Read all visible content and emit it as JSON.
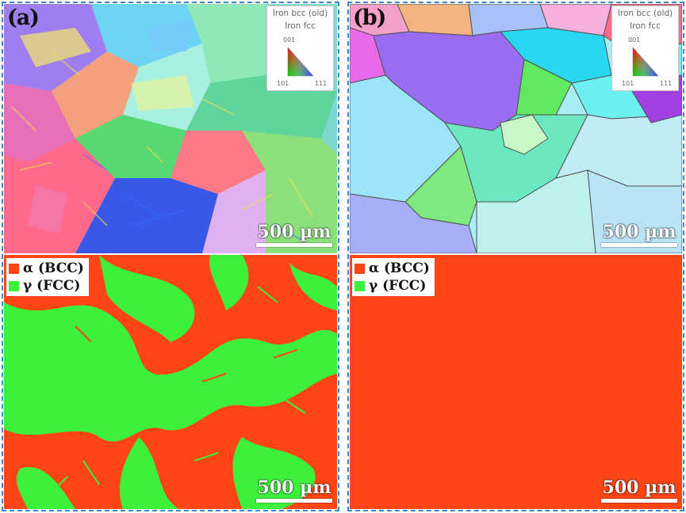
{
  "panels": {
    "a": {
      "label": "(a)"
    },
    "b": {
      "label": "(b)"
    }
  },
  "ipf_legend": {
    "line1": "Iron bcc (old)",
    "line2": "Iron fcc",
    "corner_top": "001",
    "corner_left": "101",
    "corner_right": "111"
  },
  "scale_bar": {
    "text": "500 µm"
  },
  "phase_legend": {
    "alpha": {
      "label": "α (BCC)",
      "color": "#ff4515"
    },
    "gamma": {
      "label": "γ (FCC)",
      "color": "#3cf03c"
    }
  }
}
